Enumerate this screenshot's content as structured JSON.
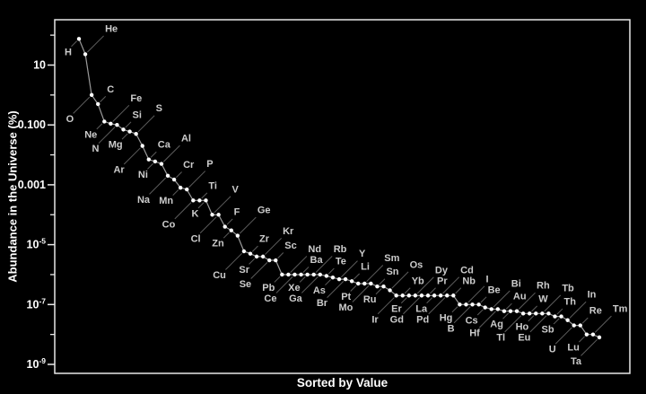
{
  "figure": {
    "xlabel": "Sorted by Value",
    "ylabel": "Abundance in the Universe (%)"
  },
  "colors": {
    "background": "#000000",
    "axis": "#e8e8e8",
    "tick_text": "#ffffff",
    "axis_title_text": "#ffffff",
    "series_line": "#9b9b9b",
    "marker": "#ffffff",
    "leader_line": "#5c5c5c",
    "element_label": "#cccccc"
  },
  "chart_data": {
    "type": "line",
    "title": "",
    "xlabel": "Sorted by Value",
    "ylabel": "Abundance in the Universe (%)",
    "x_type": "rank-sorted-descending",
    "y_scale": "log",
    "grid": false,
    "legend": "none",
    "ylim": [
      5e-10,
      320
    ],
    "y_ticks": [
      {
        "text": "10",
        "sup": "",
        "value": 10
      },
      {
        "text": "0.100",
        "sup": "",
        "value": 0.1
      },
      {
        "text": "0.001",
        "sup": "",
        "value": 0.001
      },
      {
        "text": "10",
        "sup": "-5",
        "value": 1e-05
      },
      {
        "text": "10",
        "sup": "-7",
        "value": 1e-07
      },
      {
        "text": "10",
        "sup": "-9",
        "value": 1e-09
      }
    ],
    "y_minor_ticks": [
      100,
      1,
      0.01,
      0.0001,
      1e-06,
      1e-08
    ],
    "points": [
      {
        "element": "H",
        "value": 75,
        "side": "below"
      },
      {
        "element": "He",
        "value": 23,
        "side": "above"
      },
      {
        "element": "O",
        "value": 1,
        "side": "below"
      },
      {
        "element": "C",
        "value": 0.5,
        "side": "above"
      },
      {
        "element": "Ne",
        "value": 0.13,
        "side": "below"
      },
      {
        "element": "Fe",
        "value": 0.11,
        "side": "above"
      },
      {
        "element": "N",
        "value": 0.1,
        "side": "below"
      },
      {
        "element": "Si",
        "value": 0.07,
        "side": "above"
      },
      {
        "element": "Mg",
        "value": 0.06,
        "side": "below"
      },
      {
        "element": "S",
        "value": 0.05,
        "side": "above"
      },
      {
        "element": "Ar",
        "value": 0.02,
        "side": "below"
      },
      {
        "element": "Ca",
        "value": 0.007,
        "side": "above"
      },
      {
        "element": "Ni",
        "value": 0.006,
        "side": "below"
      },
      {
        "element": "Al",
        "value": 0.005,
        "side": "above"
      },
      {
        "element": "Na",
        "value": 0.002,
        "side": "below"
      },
      {
        "element": "Cr",
        "value": 0.0015,
        "side": "above"
      },
      {
        "element": "Mn",
        "value": 0.0008,
        "side": "below"
      },
      {
        "element": "P",
        "value": 0.0007,
        "side": "above"
      },
      {
        "element": "Co",
        "value": 0.0003,
        "side": "below"
      },
      {
        "element": "Ti",
        "value": 0.0003,
        "side": "above"
      },
      {
        "element": "K",
        "value": 0.0003,
        "side": "below"
      },
      {
        "element": "V",
        "value": 0.0001,
        "side": "above"
      },
      {
        "element": "Cl",
        "value": 0.0001,
        "side": "below"
      },
      {
        "element": "F",
        "value": 4e-05,
        "side": "above"
      },
      {
        "element": "Zn",
        "value": 3e-05,
        "side": "below"
      },
      {
        "element": "Ge",
        "value": 2e-05,
        "side": "above"
      },
      {
        "element": "Cu",
        "value": 6e-06,
        "side": "below"
      },
      {
        "element": "Zr",
        "value": 5e-06,
        "side": "above"
      },
      {
        "element": "Sr",
        "value": 4e-06,
        "side": "below"
      },
      {
        "element": "Kr",
        "value": 4e-06,
        "side": "above"
      },
      {
        "element": "Se",
        "value": 3e-06,
        "side": "below"
      },
      {
        "element": "Sc",
        "value": 3e-06,
        "side": "above"
      },
      {
        "element": "Pb",
        "value": 1e-06,
        "side": "below"
      },
      {
        "element": "Nd",
        "value": 1e-06,
        "side": "above"
      },
      {
        "element": "Ce",
        "value": 1e-06,
        "side": "below"
      },
      {
        "element": "Ba",
        "value": 1e-06,
        "side": "above"
      },
      {
        "element": "Xe",
        "value": 1e-06,
        "side": "below"
      },
      {
        "element": "Rb",
        "value": 1e-06,
        "side": "above"
      },
      {
        "element": "Ga",
        "value": 1e-06,
        "side": "below"
      },
      {
        "element": "Te",
        "value": 9e-07,
        "side": "above"
      },
      {
        "element": "As",
        "value": 8e-07,
        "side": "below"
      },
      {
        "element": "Y",
        "value": 7e-07,
        "side": "above"
      },
      {
        "element": "Br",
        "value": 7e-07,
        "side": "below"
      },
      {
        "element": "Li",
        "value": 6e-07,
        "side": "above"
      },
      {
        "element": "Pt",
        "value": 5e-07,
        "side": "below"
      },
      {
        "element": "Sm",
        "value": 5e-07,
        "side": "above"
      },
      {
        "element": "Mo",
        "value": 5e-07,
        "side": "below"
      },
      {
        "element": "Sn",
        "value": 4e-07,
        "side": "above"
      },
      {
        "element": "Ru",
        "value": 4e-07,
        "side": "below"
      },
      {
        "element": "Os",
        "value": 3e-07,
        "side": "above"
      },
      {
        "element": "Ir",
        "value": 2e-07,
        "side": "below"
      },
      {
        "element": "Yb",
        "value": 2e-07,
        "side": "above"
      },
      {
        "element": "Er",
        "value": 2e-07,
        "side": "below"
      },
      {
        "element": "Dy",
        "value": 2e-07,
        "side": "above"
      },
      {
        "element": "Gd",
        "value": 2e-07,
        "side": "below"
      },
      {
        "element": "Pr",
        "value": 2e-07,
        "side": "above"
      },
      {
        "element": "La",
        "value": 2e-07,
        "side": "below"
      },
      {
        "element": "Cd",
        "value": 2e-07,
        "side": "above"
      },
      {
        "element": "Pd",
        "value": 2e-07,
        "side": "below"
      },
      {
        "element": "Nb",
        "value": 2e-07,
        "side": "above"
      },
      {
        "element": "Hg",
        "value": 1e-07,
        "side": "below"
      },
      {
        "element": "I",
        "value": 1e-07,
        "side": "above"
      },
      {
        "element": "B",
        "value": 1e-07,
        "side": "below"
      },
      {
        "element": "Be",
        "value": 1e-07,
        "side": "above"
      },
      {
        "element": "Cs",
        "value": 8e-08,
        "side": "below"
      },
      {
        "element": "Bi",
        "value": 7e-08,
        "side": "above"
      },
      {
        "element": "Hf",
        "value": 7e-08,
        "side": "below"
      },
      {
        "element": "Au",
        "value": 6e-08,
        "side": "above"
      },
      {
        "element": "Ag",
        "value": 6e-08,
        "side": "below"
      },
      {
        "element": "Rh",
        "value": 6e-08,
        "side": "above"
      },
      {
        "element": "Tl",
        "value": 5e-08,
        "side": "below"
      },
      {
        "element": "W",
        "value": 5e-08,
        "side": "above"
      },
      {
        "element": "Ho",
        "value": 5e-08,
        "side": "below"
      },
      {
        "element": "Tb",
        "value": 5e-08,
        "side": "above"
      },
      {
        "element": "Eu",
        "value": 5e-08,
        "side": "below"
      },
      {
        "element": "Th",
        "value": 4e-08,
        "side": "above"
      },
      {
        "element": "Sb",
        "value": 4e-08,
        "side": "below"
      },
      {
        "element": "In",
        "value": 3e-08,
        "side": "above"
      },
      {
        "element": "U",
        "value": 2e-08,
        "side": "below"
      },
      {
        "element": "Re",
        "value": 2e-08,
        "side": "above"
      },
      {
        "element": "Lu",
        "value": 1e-08,
        "side": "below"
      },
      {
        "element": "Tm",
        "value": 1e-08,
        "side": "above"
      },
      {
        "element": "Ta",
        "value": 8e-09,
        "side": "below"
      }
    ]
  }
}
